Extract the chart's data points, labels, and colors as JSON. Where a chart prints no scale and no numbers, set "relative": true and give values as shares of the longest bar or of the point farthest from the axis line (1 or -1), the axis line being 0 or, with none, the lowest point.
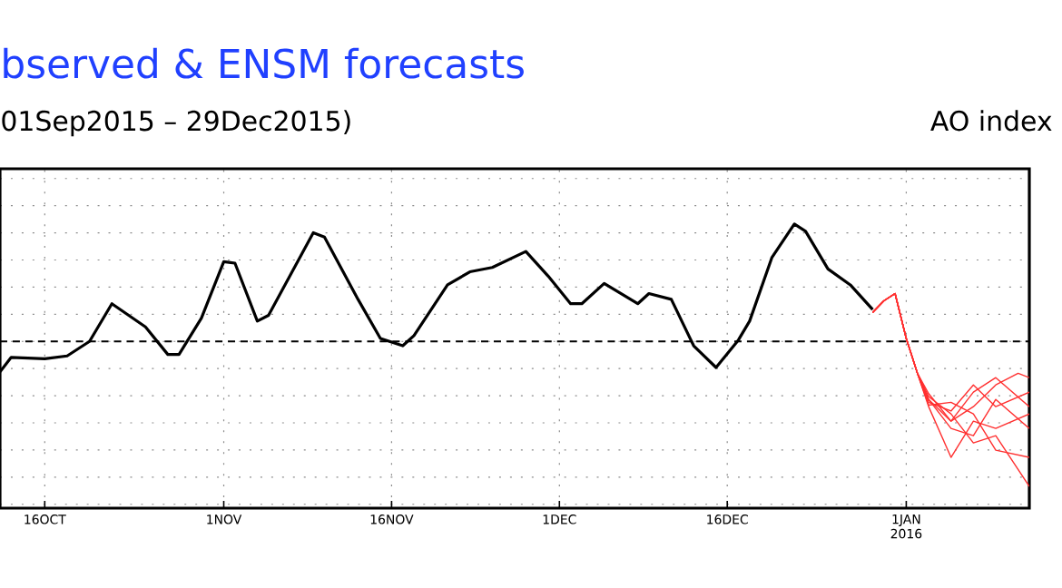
{
  "chart_data": {
    "type": "line",
    "title": "bserved & ENSM forecasts",
    "subtitle": "01Sep2015 – 29Dec2015)",
    "annotations": [
      "AO index"
    ],
    "relative": true,
    "grid": true,
    "xlim": [
      "2015-10-12",
      "2016-01-12"
    ],
    "xticks": [
      {
        "value": "2015-10-16",
        "label": "16OCT"
      },
      {
        "value": "2015-11-01",
        "label": "1NOV"
      },
      {
        "value": "2015-11-16",
        "label": "16NOV"
      },
      {
        "value": "2015-12-01",
        "label": "1DEC"
      },
      {
        "value": "2015-12-16",
        "label": "16DEC"
      },
      {
        "value": "2016-01-01",
        "label": "1JAN 2016"
      }
    ],
    "ref_lines": [
      {
        "axis": "y",
        "value": 0,
        "color": "#000000",
        "line_style": "dashed"
      }
    ],
    "series": [
      {
        "color": "#000000",
        "x": [
          "2015-10-12",
          "2015-10-13",
          "2015-10-16",
          "2015-10-18",
          "2015-10-20",
          "2015-10-22",
          "2015-10-25",
          "2015-10-27",
          "2015-10-28",
          "2015-10-30",
          "2015-11-01",
          "2015-11-02",
          "2015-11-04",
          "2015-11-05",
          "2015-11-09",
          "2015-11-10",
          "2015-11-13",
          "2015-11-15",
          "2015-11-17",
          "2015-11-18",
          "2015-11-21",
          "2015-11-23",
          "2015-11-25",
          "2015-11-28",
          "2015-11-30",
          "2015-12-02",
          "2015-12-03",
          "2015-12-05",
          "2015-12-08",
          "2015-12-09",
          "2015-12-11",
          "2015-12-13",
          "2015-12-15",
          "2015-12-17",
          "2015-12-18",
          "2015-12-20",
          "2015-12-22",
          "2015-12-23",
          "2015-12-25",
          "2015-12-27",
          "2015-12-29"
        ],
        "values": [
          -0.21,
          -0.11,
          -0.12,
          -0.1,
          0.0,
          0.26,
          0.1,
          -0.09,
          -0.09,
          0.16,
          0.55,
          0.54,
          0.14,
          0.18,
          0.75,
          0.72,
          0.29,
          0.02,
          -0.03,
          0.04,
          0.39,
          0.48,
          0.51,
          0.62,
          0.45,
          0.26,
          0.26,
          0.4,
          0.26,
          0.33,
          0.29,
          -0.03,
          -0.18,
          0.01,
          0.14,
          0.58,
          0.81,
          0.76,
          0.5,
          0.39,
          0.22
        ]
      },
      {
        "color": "#ff3030",
        "x": [
          "2015-12-29",
          "2015-12-30",
          "2015-12-31",
          "2016-01-01",
          "2016-01-02",
          "2016-01-03",
          "2016-01-05",
          "2016-01-07",
          "2016-01-09",
          "2016-01-11",
          "2016-01-12"
        ],
        "values": [
          0.2,
          0.28,
          0.33,
          0.02,
          -0.22,
          -0.4,
          -0.55,
          -0.45,
          -0.3,
          -0.22,
          -0.25
        ]
      },
      {
        "color": "#ff3030",
        "x": [
          "2015-12-29",
          "2015-12-30",
          "2015-12-31",
          "2016-01-01",
          "2016-01-02",
          "2016-01-03",
          "2016-01-05",
          "2016-01-07",
          "2016-01-09",
          "2016-01-12"
        ],
        "values": [
          0.2,
          0.28,
          0.33,
          0.02,
          -0.22,
          -0.45,
          -0.8,
          -0.55,
          -0.6,
          -0.5
        ]
      },
      {
        "color": "#ff3030",
        "x": [
          "2015-12-29",
          "2015-12-30",
          "2015-12-31",
          "2016-01-01",
          "2016-01-02",
          "2016-01-03",
          "2016-01-05",
          "2016-01-07",
          "2016-01-09",
          "2016-01-12"
        ],
        "values": [
          0.2,
          0.28,
          0.33,
          0.02,
          -0.22,
          -0.38,
          -0.5,
          -0.7,
          -0.65,
          -1.0
        ]
      },
      {
        "color": "#ff3030",
        "x": [
          "2015-12-29",
          "2015-12-30",
          "2015-12-31",
          "2016-01-01",
          "2016-01-02",
          "2016-01-03",
          "2016-01-05",
          "2016-01-07",
          "2016-01-09",
          "2016-01-12"
        ],
        "values": [
          0.2,
          0.28,
          0.33,
          0.02,
          -0.22,
          -0.42,
          -0.48,
          -0.3,
          -0.45,
          -0.35
        ]
      },
      {
        "color": "#ff3030",
        "x": [
          "2015-12-29",
          "2015-12-30",
          "2015-12-31",
          "2016-01-01",
          "2016-01-02",
          "2016-01-03",
          "2016-01-05",
          "2016-01-07",
          "2016-01-09",
          "2016-01-12"
        ],
        "values": [
          0.2,
          0.28,
          0.33,
          0.02,
          -0.22,
          -0.4,
          -0.6,
          -0.65,
          -0.4,
          -0.6
        ]
      },
      {
        "color": "#ff3030",
        "x": [
          "2015-12-29",
          "2015-12-30",
          "2015-12-31",
          "2016-01-01",
          "2016-01-02",
          "2016-01-03",
          "2016-01-05",
          "2016-01-07",
          "2016-01-09",
          "2016-01-12"
        ],
        "values": [
          0.2,
          0.28,
          0.33,
          0.02,
          -0.22,
          -0.44,
          -0.42,
          -0.5,
          -0.75,
          -0.8
        ]
      },
      {
        "color": "#ff3030",
        "x": [
          "2015-12-29",
          "2015-12-30",
          "2015-12-31",
          "2016-01-01",
          "2016-01-02",
          "2016-01-03",
          "2016-01-05",
          "2016-01-07",
          "2016-01-09",
          "2016-01-12"
        ],
        "values": [
          0.2,
          0.28,
          0.33,
          0.02,
          -0.22,
          -0.36,
          -0.55,
          -0.35,
          -0.25,
          -0.45
        ]
      }
    ]
  }
}
